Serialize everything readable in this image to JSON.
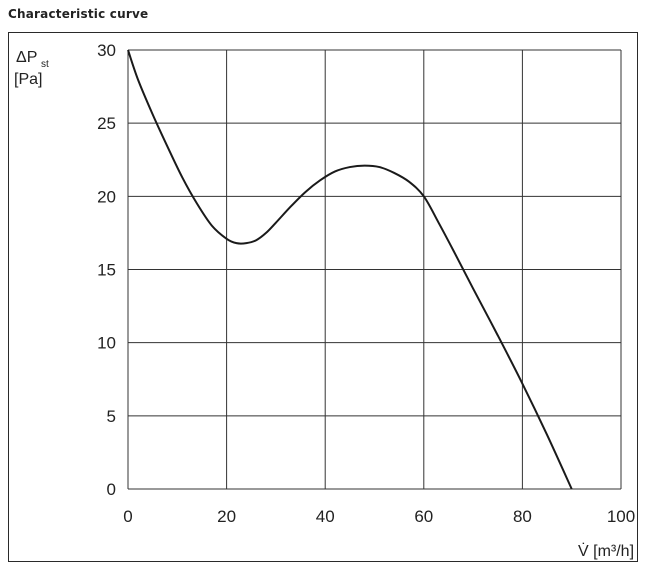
{
  "page": {
    "title": "Characteristic curve"
  },
  "chart_data": {
    "type": "line",
    "title": "Characteristic curve",
    "ylabel_main": "ΔP",
    "ylabel_sub": "st",
    "ylabel_unit": "[Pa]",
    "xlabel": "V̇ [m³/h]",
    "xlim": [
      0,
      100
    ],
    "ylim": [
      0,
      30
    ],
    "xticks": [
      0,
      20,
      40,
      60,
      80,
      100
    ],
    "yticks": [
      0,
      5,
      10,
      15,
      20,
      25,
      30
    ],
    "grid": true,
    "line_color": "#1a1a1a",
    "series": [
      {
        "x": [
          0,
          2,
          5,
          8,
          11,
          14,
          17,
          20,
          22,
          24,
          26,
          28,
          30,
          33,
          36,
          39,
          42,
          45,
          48,
          51,
          54,
          57,
          60,
          63,
          66,
          70,
          75,
          80,
          85,
          90
        ],
        "y": [
          30,
          28,
          25.6,
          23.4,
          21.3,
          19.5,
          18,
          17.1,
          16.8,
          16.8,
          17.0,
          17.5,
          18.2,
          19.3,
          20.3,
          21.1,
          21.7,
          22.0,
          22.1,
          22.0,
          21.6,
          21.0,
          20.0,
          18.2,
          16.3,
          13.7,
          10.5,
          7.2,
          3.7,
          0
        ]
      }
    ]
  }
}
